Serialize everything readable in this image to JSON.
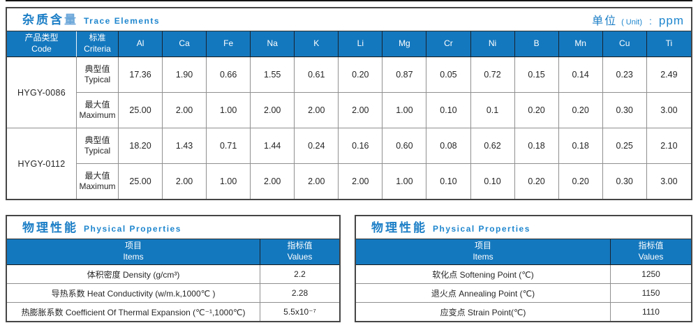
{
  "colors": {
    "accent_blue": "#1478BE",
    "title_blue": "#1B7EC6",
    "grid_gray": "#8F8F8F",
    "border_dark": "#454545"
  },
  "trace": {
    "title_zh_main": "杂质含",
    "title_zh_last": "量",
    "title_en": "Trace Elements",
    "unit_zh": "单位",
    "unit_paren": "( Unit)",
    "unit_colon": ":",
    "unit_value": "ppm",
    "col_code_zh": "产品类型",
    "col_code_en": "Code",
    "col_criteria_zh": "标准",
    "col_criteria_en": "Criteria",
    "elements": [
      "Al",
      "Ca",
      "Fe",
      "Na",
      "K",
      "Li",
      "Mg",
      "Cr",
      "Ni",
      "B",
      "Mn",
      "Cu",
      "Ti"
    ],
    "products": [
      {
        "code": "HYGY-0086",
        "rows": [
          {
            "criteria_zh": "典型值",
            "criteria_en": "Typical",
            "values": [
              "17.36",
              "1.90",
              "0.66",
              "1.55",
              "0.61",
              "0.20",
              "0.87",
              "0.05",
              "0.72",
              "0.15",
              "0.14",
              "0.23",
              "2.49"
            ]
          },
          {
            "criteria_zh": "最大值",
            "criteria_en": "Maximum",
            "values": [
              "25.00",
              "2.00",
              "1.00",
              "2.00",
              "2.00",
              "2.00",
              "1.00",
              "0.10",
              "0.1",
              "0.20",
              "0.20",
              "0.30",
              "3.00"
            ]
          }
        ]
      },
      {
        "code": "HYGY-0112",
        "rows": [
          {
            "criteria_zh": "典型值",
            "criteria_en": "Typical",
            "values": [
              "18.20",
              "1.43",
              "0.71",
              "1.44",
              "0.24",
              "0.16",
              "0.60",
              "0.08",
              "0.62",
              "0.18",
              "0.18",
              "0.25",
              "2.10"
            ]
          },
          {
            "criteria_zh": "最大值",
            "criteria_en": "Maximum",
            "values": [
              "25.00",
              "2.00",
              "1.00",
              "2.00",
              "2.00",
              "2.00",
              "1.00",
              "0.10",
              "0.10",
              "0.20",
              "0.20",
              "0.30",
              "3.00"
            ]
          }
        ]
      }
    ]
  },
  "physical_left": {
    "title_zh": "物理性能",
    "title_en": "Physical Properties",
    "col_items_zh": "项目",
    "col_items_en": "Items",
    "col_values_zh": "指标值",
    "col_values_en": "Values",
    "rows": [
      {
        "item": "体积密度 Density (g/cm³)",
        "value": "2.2"
      },
      {
        "item": "导热系数 Heat Conductivity (w/m.k,1000℃ )",
        "value": "2.28"
      },
      {
        "item": "热膨胀系数 Coefficient Of Thermal Expansion (℃⁻¹,1000℃)",
        "value": "5.5x10⁻⁷"
      }
    ]
  },
  "physical_right": {
    "title_zh": "物理性能",
    "title_en": "Physical Properties",
    "col_items_zh": "项目",
    "col_items_en": "Items",
    "col_values_zh": "指标值",
    "col_values_en": "Values",
    "rows": [
      {
        "item": "软化点 Softening Point (℃)",
        "value": "1250"
      },
      {
        "item": "退火点 Annealing Point (℃)",
        "value": "1150"
      },
      {
        "item": "应变点 Strain Point(℃)",
        "value": "1110"
      }
    ]
  }
}
